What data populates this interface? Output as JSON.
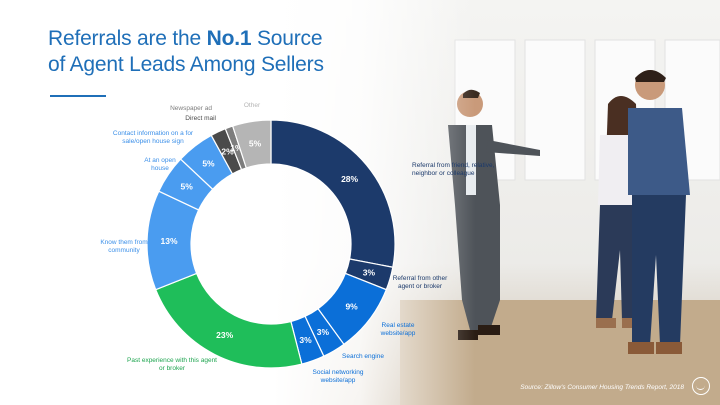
{
  "header": {
    "title_pre": "Referrals are the ",
    "title_bold": "No.1",
    "title_post": " Source",
    "title_line2": "of Agent Leads Among Sellers"
  },
  "chart_data": {
    "type": "pie",
    "title": "Referrals are the No.1 Source of Agent Leads Among Sellers",
    "slices": [
      {
        "label": "Referral from friend, relative, neighbor or colleague",
        "value": 28,
        "value_label": "28%",
        "color": "#1c3a6b",
        "label_color": "#1c3a6b"
      },
      {
        "label": "Referral from other agent or broker",
        "value": 3,
        "value_label": "3%",
        "color": "#1c3a6b",
        "label_color": "#1c3a6b"
      },
      {
        "label": "Real estate website/app",
        "value": 9,
        "value_label": "9%",
        "color": "#0b6fd8",
        "label_color": "#0b6fd8"
      },
      {
        "label": "Search engine",
        "value": 3,
        "value_label": "3%",
        "color": "#0b6fd8",
        "label_color": "#0b6fd8"
      },
      {
        "label": "Social networking website/app",
        "value": 3,
        "value_label": "3%",
        "color": "#0b6fd8",
        "label_color": "#0b6fd8"
      },
      {
        "label": "Past experience with this agent or broker",
        "value": 23,
        "value_label": "23%",
        "color": "#1fbe5a",
        "label_color": "#1fa550"
      },
      {
        "label": "Know them from community",
        "value": 13,
        "value_label": "13%",
        "color": "#4a9cf0",
        "label_color": "#3b8fe8"
      },
      {
        "label": "At an open house",
        "value": 5,
        "value_label": "5%",
        "color": "#4a9cf0",
        "label_color": "#3b8fe8"
      },
      {
        "label": "Contact information on a for sale/open house sign",
        "value": 5,
        "value_label": "5%",
        "color": "#4a9cf0",
        "label_color": "#3b8fe8"
      },
      {
        "label": "Direct mail",
        "value": 2,
        "value_label": "2%",
        "color": "#4a4a4a",
        "label_color": "#4a4a4a"
      },
      {
        "label": "Newspaper ad",
        "value": 1,
        "value_label": "1%",
        "color": "#7d7d7d",
        "label_color": "#7d7d7d"
      },
      {
        "label": "Other",
        "value": 5,
        "value_label": "5%",
        "color": "#b5b5b5",
        "label_color": "#b5b5b5"
      }
    ]
  },
  "footer": {
    "source": "Source: Zillow's Consumer Housing Trends Report, 2018"
  }
}
